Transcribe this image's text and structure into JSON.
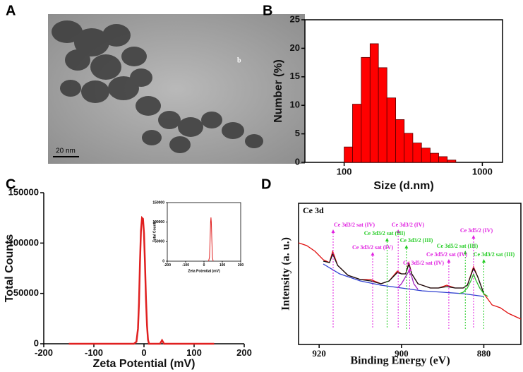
{
  "chart_data": [
    {
      "type": "image",
      "panel_label": "A",
      "scale_bar": "20 nm",
      "corner_text": "b"
    },
    {
      "type": "histogram",
      "panel_label": "B",
      "xlabel": "Size (d.nm)",
      "ylabel": "Number (%)",
      "bins": [
        100,
        115,
        133,
        154,
        177,
        204,
        236,
        272,
        314,
        363,
        419,
        483,
        557,
        643
      ],
      "values": [
        2.7,
        10.2,
        18.4,
        20.8,
        16.6,
        11.3,
        7.5,
        5.1,
        3.4,
        2.5,
        1.6,
        1.0,
        0.4
      ],
      "color": "#ff0000",
      "log_x": true,
      "xlim": [
        52,
        1400
      ],
      "xticks": [
        100,
        1000
      ],
      "ylim": [
        0,
        25
      ],
      "yticks": [
        0,
        5,
        10,
        15,
        20,
        25
      ]
    },
    {
      "type": "line",
      "panel_label": "C",
      "xlabel": "Zeta Potential (mV)",
      "ylabel": "Total Counts",
      "series": [
        {
          "color": "#e02020",
          "x": [
            -150,
            -20,
            -15,
            -12,
            -10,
            -8,
            -6,
            -4,
            -2,
            0,
            2,
            4,
            6,
            8,
            10,
            32,
            36,
            40,
            140
          ],
          "values": [
            0,
            0,
            2000,
            15000,
            40000,
            80000,
            112000,
            125000,
            124000,
            110000,
            80000,
            45000,
            18000,
            4000,
            0,
            0,
            3500,
            0,
            0
          ]
        }
      ],
      "xlim": [
        -200,
        200
      ],
      "xticks": [
        -200,
        -100,
        0,
        100,
        200
      ],
      "ylim": [
        0,
        150000
      ],
      "yticks": [
        0,
        50000,
        100000,
        150000
      ]
    },
    {
      "type": "line",
      "xlabel": "Zeta Potential (mV)",
      "ylabel": "Total Counts",
      "series": [
        {
          "color": "#e02020",
          "x": [
            25,
            30,
            33,
            36,
            38,
            40,
            43,
            46,
            50
          ],
          "values": [
            0,
            10000,
            50000,
            100000,
            112000,
            100000,
            50000,
            10000,
            0
          ]
        }
      ],
      "xlim": [
        -200,
        200
      ],
      "xticks": [
        -200,
        -100,
        0,
        100,
        200
      ],
      "ylim": [
        0,
        150000
      ],
      "yticks": [
        0,
        50000,
        100000,
        150000
      ]
    },
    {
      "type": "line",
      "panel_label": "D",
      "title": "Ce 3d",
      "xlabel": "Binding Energy (eV)",
      "ylabel": "Intensity (a. u.)",
      "series": [
        {
          "color": "#e01010",
          "x": [
            925,
            923,
            921,
            919,
            917.5,
            916.7,
            915.5,
            913,
            910,
            907.5,
            905,
            903,
            901,
            900,
            899,
            898.2,
            897.5,
            896,
            893,
            891,
            889,
            887,
            885,
            884,
            882.5,
            881.5,
            880,
            878,
            876,
            874,
            871
          ],
          "values": [
            72,
            70,
            66,
            60,
            58,
            66,
            56,
            49,
            46,
            46,
            43,
            45,
            52,
            50,
            50,
            58,
            50,
            43,
            40,
            40,
            42,
            40,
            40,
            42,
            55,
            48,
            36,
            28,
            26,
            22,
            18
          ]
        },
        {
          "color": "#111111",
          "x": [
            919,
            917.5,
            916.7,
            915.5,
            913,
            910,
            907.5,
            905,
            903,
            901,
            900,
            899,
            898.2,
            897.5,
            896,
            893,
            891,
            889,
            887,
            885,
            884,
            882.5,
            881.5,
            880
          ],
          "values": [
            59,
            58,
            64,
            56,
            49,
            46,
            45,
            43,
            45,
            51,
            50,
            50,
            57,
            50,
            43,
            40,
            40,
            41,
            40,
            40,
            42,
            54,
            48,
            36
          ]
        },
        {
          "color": "#3040d0",
          "x": [
            919,
            915,
            910,
            905,
            900,
            895,
            890,
            885,
            880
          ],
          "values": [
            57,
            50,
            45,
            42,
            40,
            38,
            37,
            36,
            34
          ]
        },
        {
          "color": "#30c030",
          "x": [
            886,
            885,
            884,
            883,
            882.5,
            882,
            881,
            880,
            879
          ],
          "values": [
            36,
            37,
            40,
            46,
            50,
            46,
            40,
            36,
            34
          ]
        },
        {
          "color": "#a020c0",
          "x": [
            901,
            900,
            899,
            898.2,
            897.5,
            897,
            896
          ],
          "values": [
            40,
            43,
            48,
            52,
            48,
            43,
            39
          ]
        }
      ],
      "annotations": [
        {
          "text": "Ce 3d3/2 sat (IV)",
          "color": "#e020e0",
          "x": 916.6
        },
        {
          "text": "Ce 3d3/2 (IV)",
          "color": "#e020e0",
          "x": 900.8
        },
        {
          "text": "Ce 3d3/2 sat (III)",
          "color": "#22cc22",
          "x": 903.5
        },
        {
          "text": "Ce 3d3/2 sat (IV)",
          "color": "#e020e0",
          "x": 907
        },
        {
          "text": "Ce 3d3/2 (III)",
          "color": "#22cc22",
          "x": 898.8
        },
        {
          "text": "Ce 3d5/2 (IV)",
          "color": "#e020e0",
          "x": 882.5
        },
        {
          "text": "Ce 3d5/2 sat (III)",
          "color": "#22cc22",
          "x": 884.5
        },
        {
          "text": "Ce 3d5/2 sat (IV)",
          "color": "#e020e0",
          "x": 888.5
        },
        {
          "text": "Ce 3d3/2 sat (III)",
          "color": "#22cc22",
          "x": 880
        },
        {
          "text": "Ce 3d5/2 sat (IV)",
          "color": "#e020e0",
          "x": 898
        }
      ],
      "xlim": [
        925,
        871
      ],
      "xticks": [
        920,
        900,
        880
      ],
      "ylim": [
        0,
        100
      ]
    }
  ]
}
